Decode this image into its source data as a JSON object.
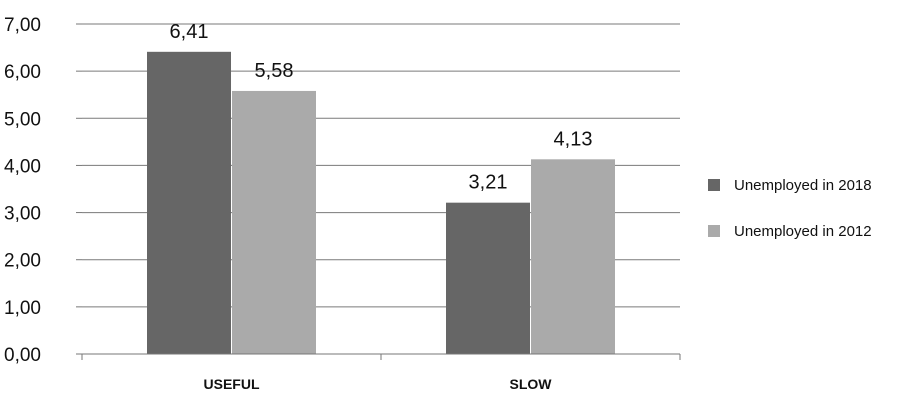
{
  "chart_data": {
    "type": "bar",
    "title": "",
    "xlabel": "",
    "ylabel": "",
    "categories": [
      "USEFUL",
      "SLOW"
    ],
    "series": [
      {
        "name": "Unemployed in 2018",
        "values": [
          6.41,
          3.21
        ],
        "labels": [
          "6,41",
          "3,21"
        ],
        "color": "#666666"
      },
      {
        "name": "Unemployed in 2012",
        "values": [
          5.58,
          4.13
        ],
        "labels": [
          "5,58",
          "4,13"
        ],
        "color": "#aaaaaa"
      }
    ],
    "ylim": [
      0,
      7
    ],
    "yticks": [
      "0,00",
      "1,00",
      "2,00",
      "3,00",
      "4,00",
      "5,00",
      "6,00",
      "7,00"
    ],
    "grid": true,
    "legend_position": "right"
  }
}
